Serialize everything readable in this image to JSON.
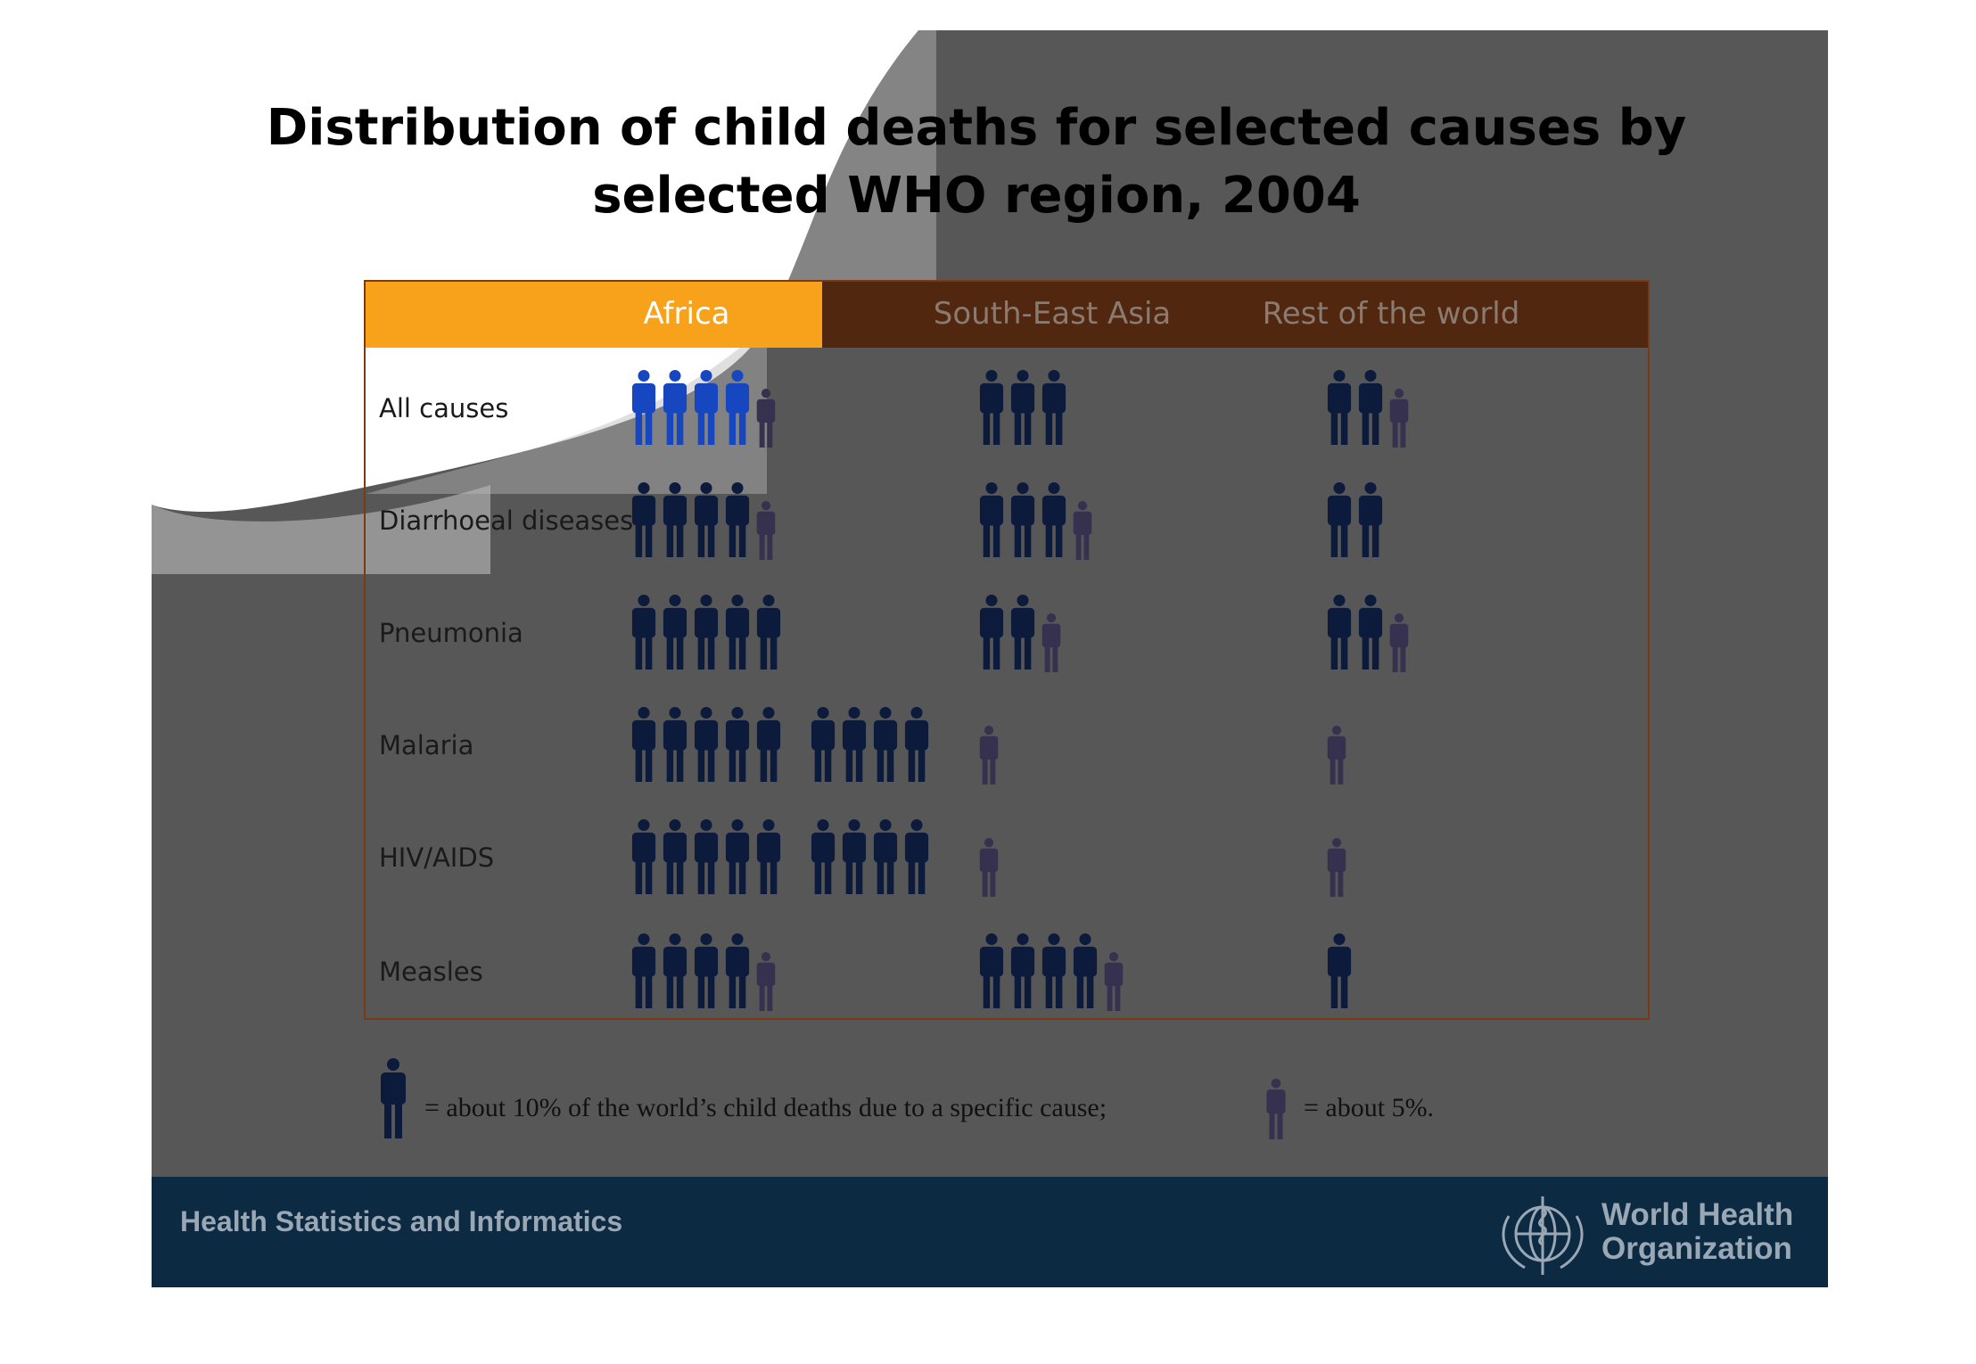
{
  "slide": {
    "title_line1": "Distribution of child deaths for selected causes by",
    "title_line2": "selected WHO region, 2004",
    "footer_text": "Health Statistics and Informatics",
    "org_line1": "World Health",
    "org_line2": "Organization"
  },
  "colors": {
    "africa_header": "#f7a21a",
    "header": "#52270f",
    "figure": "#0c1a3c",
    "figure_half": "#35314f",
    "figure_highlight": "#1747c0",
    "footer": "#0d2a43"
  },
  "chart_data": {
    "type": "table",
    "title": "Distribution of child deaths for selected causes by selected WHO region, 2004",
    "unit": "% of the world's child deaths due to a specific cause",
    "columns": [
      "Africa",
      "South-East Asia",
      "Rest of the world"
    ],
    "rows": [
      {
        "label": "All causes",
        "values": [
          45,
          30,
          25
        ]
      },
      {
        "label": "Diarrhoeal diseases",
        "values": [
          45,
          35,
          20
        ]
      },
      {
        "label": "Pneumonia",
        "values": [
          50,
          25,
          25
        ]
      },
      {
        "label": "Malaria",
        "values": [
          90,
          5,
          5
        ]
      },
      {
        "label": "HIV/AIDS",
        "values": [
          90,
          5,
          5
        ]
      },
      {
        "label": "Measles",
        "values": [
          45,
          45,
          10
        ]
      }
    ],
    "legend": {
      "full_icon": "= about 10% of the world’s child deaths due to a specific cause;",
      "half_icon": "= about 5%.",
      "full_value": 10,
      "half_value": 5
    }
  }
}
